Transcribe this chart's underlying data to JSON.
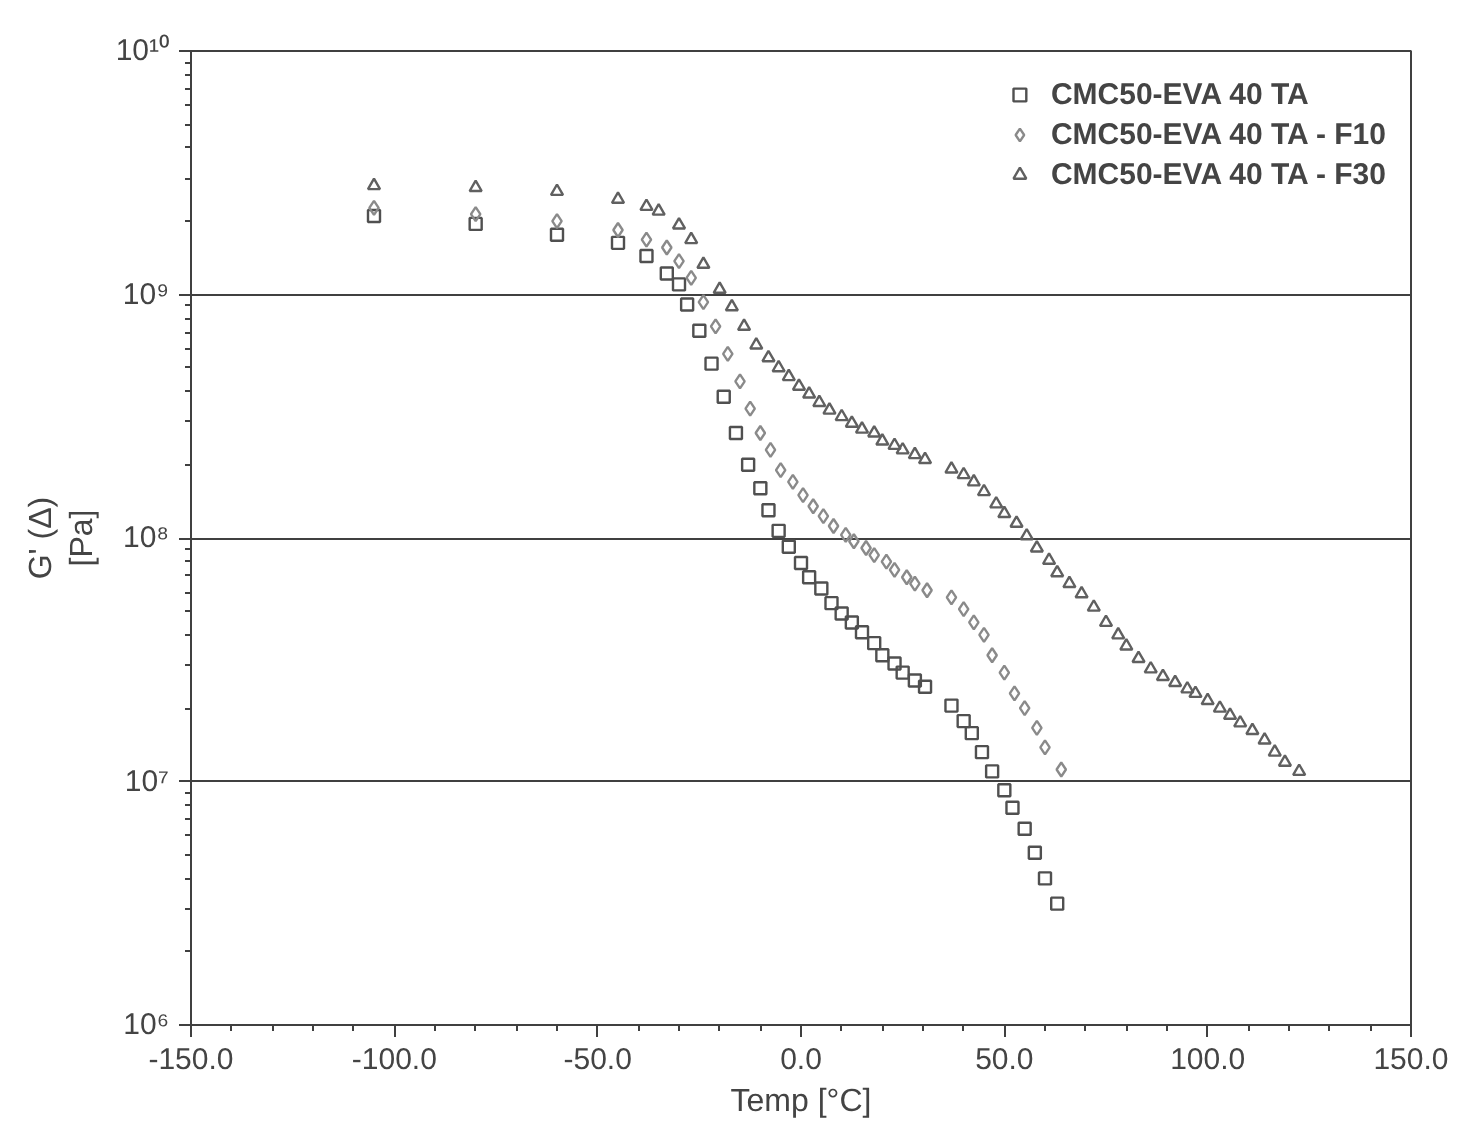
{
  "chart_data": {
    "type": "scatter",
    "xlabel": "Temp [°C]",
    "ylabel": "G' (Δ)\n[Pa]",
    "log": "y",
    "grid": "y",
    "legend": "top right",
    "xlim": [
      -150,
      150
    ],
    "xticks": [
      {
        "value": -150,
        "label": "-150.0"
      },
      {
        "value": -100,
        "label": "-100.0"
      },
      {
        "value": -50,
        "label": "-50.0"
      },
      {
        "value": 0,
        "label": "0.0"
      },
      {
        "value": 50,
        "label": "50.0"
      },
      {
        "value": 100,
        "label": "100.0"
      },
      {
        "value": 150,
        "label": "150.0"
      }
    ],
    "ylim": [
      1000000,
      10000000000
    ],
    "yticks": [
      {
        "value": 1000000,
        "label": "10⁶"
      },
      {
        "value": 10000000,
        "label": "10⁷"
      },
      {
        "value": 100000000,
        "label": "10⁸"
      },
      {
        "value": 1000000000,
        "label": "10⁹"
      },
      {
        "value": 10000000000,
        "label": "10¹⁰"
      }
    ],
    "series": [
      {
        "name": "CMC50-EVA 40 TA",
        "color": "#505050",
        "marker": "square",
        "x": [
          -105,
          -80,
          -60,
          -45,
          -38,
          -33,
          -30,
          -28,
          -25,
          -22,
          -19,
          -16,
          -13,
          -10,
          -8,
          -5.5,
          -3,
          0,
          2,
          5,
          7.5,
          10,
          12.5,
          15,
          18,
          20,
          23,
          25,
          28,
          30.5,
          37,
          40,
          42,
          44.5,
          47,
          50,
          52,
          55,
          57.5,
          60,
          63
        ],
        "values": [
          2100000000.0,
          1950000000.0,
          1760000000.0,
          1630000000.0,
          1440000000.0,
          1220000000.0,
          1100000000.0,
          910000000.0,
          710000000.0,
          520000000.0,
          380000000.0,
          270000000.0,
          200000000.0,
          160000000.0,
          130000000.0,
          107000000.0,
          92000000.0,
          79000000.0,
          69000000.0,
          62000000.0,
          54000000.0,
          49000000.0,
          45000000.0,
          41000000.0,
          37000000.0,
          33000000.0,
          30500000.0,
          28000000.0,
          26000000.0,
          24500000.0,
          20500000.0,
          17700000.0,
          15800000.0,
          13200000.0,
          11000000.0,
          9200000.0,
          7800000.0,
          6400000.0,
          5100000.0,
          4000000.0,
          3150000.0
        ]
      },
      {
        "name": "CMC50-EVA 40 TA - F10",
        "color": "#8a8a8a",
        "marker": "diamond",
        "x": [
          -105,
          -80,
          -60,
          -45,
          -38,
          -33,
          -30,
          -27,
          -24,
          -21,
          -18,
          -15,
          -12.5,
          -10,
          -7.5,
          -5,
          -2,
          0.5,
          3,
          5.5,
          8,
          11,
          13,
          16,
          18,
          21,
          23,
          26,
          28,
          31,
          37,
          40,
          42.5,
          45,
          47,
          50,
          52.5,
          55,
          58,
          60,
          64
        ],
        "values": [
          2270000000.0,
          2140000000.0,
          2000000000.0,
          1840000000.0,
          1680000000.0,
          1560000000.0,
          1370000000.0,
          1170000000.0,
          930000000.0,
          740000000.0,
          570000000.0,
          440000000.0,
          340000000.0,
          270000000.0,
          230000000.0,
          190000000.0,
          170000000.0,
          150000000.0,
          135000000.0,
          123000000.0,
          112000000.0,
          103000000.0,
          97000000.0,
          91000000.0,
          85000000.0,
          80000000.0,
          74000000.0,
          69000000.0,
          65000000.0,
          61000000.0,
          57000000.0,
          51000000.0,
          45000000.0,
          40000000.0,
          33000000.0,
          28000000.0,
          23000000.0,
          20000000.0,
          16600000.0,
          13800000.0,
          11200000.0
        ]
      },
      {
        "name": "CMC50-EVA 40 TA - F30",
        "color": "#606060",
        "marker": "triangle",
        "x": [
          -105,
          -80,
          -60,
          -45,
          -38,
          -35,
          -30,
          -27,
          -24,
          -20,
          -17,
          -14,
          -11,
          -8,
          -5.5,
          -3,
          -0.5,
          2,
          4.5,
          7,
          10,
          12.5,
          15,
          18,
          20,
          23,
          25,
          28,
          30.5,
          37,
          40,
          42.5,
          45,
          48,
          50,
          53,
          55.5,
          58,
          61,
          63,
          66,
          69,
          72,
          75,
          78,
          80,
          83,
          86,
          89,
          92,
          95,
          97,
          100,
          103,
          105.5,
          108,
          111,
          114,
          116.5,
          119,
          122.5
        ],
        "values": [
          2800000000.0,
          2750000000.0,
          2650000000.0,
          2460000000.0,
          2300000000.0,
          2200000000.0,
          1930000000.0,
          1680000000.0,
          1330000000.0,
          1050000000.0,
          890000000.0,
          740000000.0,
          620000000.0,
          550000000.0,
          500000000.0,
          460000000.0,
          420000000.0,
          390000000.0,
          360000000.0,
          335000000.0,
          315000000.0,
          296000000.0,
          280000000.0,
          270000000.0,
          250000000.0,
          240000000.0,
          230000000.0,
          220000000.0,
          210000000.0,
          192000000.0,
          182000000.0,
          170000000.0,
          155000000.0,
          138000000.0,
          126000000.0,
          115000000.0,
          102000000.0,
          91000000.0,
          81000000.0,
          72000000.0,
          65000000.0,
          59000000.0,
          52000000.0,
          45000000.0,
          40000000.0,
          36000000.0,
          32000000.0,
          29000000.0,
          27000000.0,
          25500000.0,
          24000000.0,
          23000000.0,
          21500000.0,
          20000000.0,
          18700000.0,
          17400000.0,
          16200000.0,
          14800000.0,
          13200000.0,
          12000000.0,
          11000000.0
        ]
      }
    ]
  }
}
